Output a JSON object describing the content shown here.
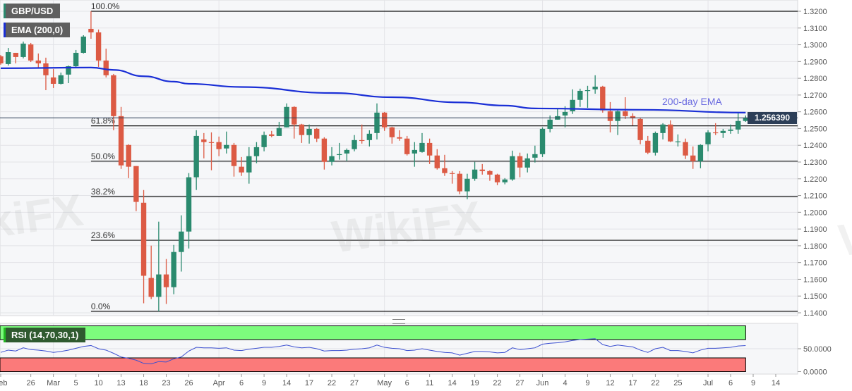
{
  "header": {
    "symbol": "GBP/USD",
    "indicator": "EMA (200,0)",
    "rsi_label": "RSI (14,70,30,1)",
    "watermark": "WikiFX"
  },
  "colors": {
    "up": "#2a8a6e",
    "down": "#dc5a44",
    "ema": "#1a2fd6",
    "price_label_bg": "#2c3e57",
    "rsi_line": "#3b4fd0",
    "overbought": "#7dfc7d",
    "oversold": "#fb7a7a",
    "plot_bg": "#f6f7f9",
    "grid": "#e3e4e8"
  },
  "chart_data": {
    "type": "candlestick",
    "title": "",
    "ylim": [
      1.14,
      1.32
    ],
    "y_ticks": [
      "1.3200",
      "1.3100",
      "1.3000",
      "1.2900",
      "1.2800",
      "1.2700",
      "1.2600",
      "1.2500",
      "1.2400",
      "1.2300",
      "1.2200",
      "1.2100",
      "1.2000",
      "1.1900",
      "1.1800",
      "1.1700",
      "1.1600",
      "1.1500",
      "1.1400"
    ],
    "current_price": "1.256390",
    "x_ticks": [
      {
        "label": "Feb",
        "date": "02-20"
      },
      {
        "label": "26",
        "date": "02-26"
      },
      {
        "label": "Mar",
        "date": "03-02"
      },
      {
        "label": "5",
        "date": "03-05"
      },
      {
        "label": "10",
        "date": "03-10"
      },
      {
        "label": "13",
        "date": "03-13"
      },
      {
        "label": "18",
        "date": "03-18"
      },
      {
        "label": "23",
        "date": "03-23"
      },
      {
        "label": "26",
        "date": "03-26"
      },
      {
        "label": "Apr",
        "date": "04-01"
      },
      {
        "label": "6",
        "date": "04-06"
      },
      {
        "label": "9",
        "date": "04-09"
      },
      {
        "label": "14",
        "date": "04-14"
      },
      {
        "label": "17",
        "date": "04-17"
      },
      {
        "label": "22",
        "date": "04-22"
      },
      {
        "label": "27",
        "date": "04-27"
      },
      {
        "label": "May",
        "date": "05-01"
      },
      {
        "label": "6",
        "date": "05-06"
      },
      {
        "label": "11",
        "date": "05-11"
      },
      {
        "label": "14",
        "date": "05-14"
      },
      {
        "label": "19",
        "date": "05-19"
      },
      {
        "label": "22",
        "date": "05-22"
      },
      {
        "label": "27",
        "date": "05-27"
      },
      {
        "label": "Jun",
        "date": "06-01"
      },
      {
        "label": "4",
        "date": "06-04"
      },
      {
        "label": "9",
        "date": "06-09"
      },
      {
        "label": "12",
        "date": "06-12"
      },
      {
        "label": "17",
        "date": "06-17"
      },
      {
        "label": "22",
        "date": "06-22"
      },
      {
        "label": "25",
        "date": "06-25"
      },
      {
        "label": "Jul",
        "date": "07-01"
      },
      {
        "label": "6",
        "date": "07-06"
      },
      {
        "label": "9",
        "date": "07-09"
      },
      {
        "label": "14",
        "date": "07-14"
      }
    ],
    "candles_fields": [
      "date",
      "open",
      "high",
      "low",
      "close"
    ],
    "candles": [
      [
        "02-20",
        1.2931,
        1.2939,
        1.2881,
        1.2889
      ],
      [
        "02-21",
        1.2885,
        1.2981,
        1.2876,
        1.2956
      ],
      [
        "02-24",
        1.2952,
        1.2952,
        1.2889,
        1.2927
      ],
      [
        "02-25",
        1.2927,
        1.3019,
        1.2919,
        1.3007
      ],
      [
        "02-26",
        1.3002,
        1.3011,
        1.2897,
        1.2906
      ],
      [
        "02-27",
        1.2906,
        1.2948,
        1.286,
        1.2889
      ],
      [
        "02-28",
        1.2889,
        1.2923,
        1.2729,
        1.2818
      ],
      [
        "03-02",
        1.2805,
        1.2855,
        1.2742,
        1.2767
      ],
      [
        "03-03",
        1.2767,
        1.2834,
        1.2763,
        1.2818
      ],
      [
        "03-04",
        1.2822,
        1.2876,
        1.2771,
        1.2872
      ],
      [
        "03-05",
        1.2872,
        1.2969,
        1.2864,
        1.2952
      ],
      [
        "03-06",
        1.2952,
        1.3057,
        1.2948,
        1.3049
      ],
      [
        "03-09",
        1.3095,
        1.32,
        1.3036,
        1.3074
      ],
      [
        "03-10",
        1.3074,
        1.3091,
        1.2868,
        1.2906
      ],
      [
        "03-11",
        1.2906,
        1.2977,
        1.2805,
        1.2818
      ],
      [
        "03-12",
        1.2818,
        1.2826,
        1.249,
        1.2574
      ],
      [
        "03-13",
        1.2574,
        1.2629,
        1.2259,
        1.228
      ],
      [
        "03-16",
        1.2402,
        1.2406,
        1.2204,
        1.2272
      ],
      [
        "03-17",
        1.2276,
        1.2276,
        1.2007,
        1.2062
      ],
      [
        "03-18",
        1.2057,
        1.2133,
        1.1457,
        1.1621
      ],
      [
        "03-19",
        1.1608,
        1.1801,
        1.1482,
        1.1495
      ],
      [
        "03-20",
        1.1495,
        1.1944,
        1.1409,
        1.1629
      ],
      [
        "03-23",
        1.1629,
        1.1721,
        1.1453,
        1.1553
      ],
      [
        "03-24",
        1.1553,
        1.1805,
        1.1511,
        1.1763
      ],
      [
        "03-25",
        1.1763,
        1.1982,
        1.1646,
        1.1885
      ],
      [
        "03-26",
        1.1885,
        1.2234,
        1.1784,
        1.2209
      ],
      [
        "03-27",
        1.2209,
        1.249,
        1.2133,
        1.2456
      ],
      [
        "03-30",
        1.2435,
        1.2473,
        1.2322,
        1.2419
      ],
      [
        "03-31",
        1.2419,
        1.2477,
        1.2251,
        1.2414
      ],
      [
        "04-01",
        1.2419,
        1.2452,
        1.2335,
        1.2377
      ],
      [
        "04-02",
        1.2381,
        1.2482,
        1.2351,
        1.2402
      ],
      [
        "04-03",
        1.2402,
        1.2414,
        1.2213,
        1.2276
      ],
      [
        "04-06",
        1.2272,
        1.233,
        1.2217,
        1.2238
      ],
      [
        "04-07",
        1.2238,
        1.2389,
        1.2171,
        1.2335
      ],
      [
        "04-08",
        1.2335,
        1.2419,
        1.2293,
        1.2389
      ],
      [
        "04-09",
        1.2389,
        1.2482,
        1.2364,
        1.2461
      ],
      [
        "04-10",
        1.2465,
        1.2486,
        1.2448,
        1.2456
      ],
      [
        "04-13",
        1.2456,
        1.254,
        1.2456,
        1.2503
      ],
      [
        "04-14",
        1.2507,
        1.265,
        1.2507,
        1.2629
      ],
      [
        "04-15",
        1.2629,
        1.2633,
        1.244,
        1.2524
      ],
      [
        "04-16",
        1.2524,
        1.2528,
        1.2414,
        1.2461
      ],
      [
        "04-17",
        1.2461,
        1.2524,
        1.241,
        1.2498
      ],
      [
        "04-20",
        1.2498,
        1.2503,
        1.2419,
        1.244
      ],
      [
        "04-21",
        1.244,
        1.2448,
        1.2255,
        1.2301
      ],
      [
        "04-22",
        1.2301,
        1.2389,
        1.228,
        1.2335
      ],
      [
        "04-23",
        1.2343,
        1.2414,
        1.2314,
        1.2347
      ],
      [
        "04-24",
        1.2351,
        1.2381,
        1.2305,
        1.2372
      ],
      [
        "04-27",
        1.2377,
        1.2461,
        1.2364,
        1.2431
      ],
      [
        "04-28",
        1.2431,
        1.2524,
        1.241,
        1.2427
      ],
      [
        "04-29",
        1.2431,
        1.249,
        1.2393,
        1.2469
      ],
      [
        "04-30",
        1.2473,
        1.265,
        1.2435,
        1.2595
      ],
      [
        "05-01",
        1.2595,
        1.2599,
        1.2486,
        1.2507
      ],
      [
        "05-04",
        1.2507,
        1.2511,
        1.241,
        1.2448
      ],
      [
        "05-05",
        1.2448,
        1.249,
        1.2427,
        1.244
      ],
      [
        "05-06",
        1.244,
        1.2456,
        1.2339,
        1.2347
      ],
      [
        "05-07",
        1.2351,
        1.2419,
        1.2272,
        1.2372
      ],
      [
        "05-08",
        1.236,
        1.2473,
        1.2356,
        1.2414
      ],
      [
        "05-11",
        1.2414,
        1.244,
        1.2288,
        1.2339
      ],
      [
        "05-12",
        1.2339,
        1.2377,
        1.2255,
        1.2263
      ],
      [
        "05-13",
        1.2263,
        1.2343,
        1.2217,
        1.2234
      ],
      [
        "05-14",
        1.2234,
        1.2246,
        1.2171,
        1.223
      ],
      [
        "05-15",
        1.223,
        1.2246,
        1.2108,
        1.2125
      ],
      [
        "05-18",
        1.2125,
        1.223,
        1.2078,
        1.22
      ],
      [
        "05-19",
        1.22,
        1.2301,
        1.2188,
        1.2255
      ],
      [
        "05-20",
        1.2255,
        1.2288,
        1.2225,
        1.2246
      ],
      [
        "05-21",
        1.2246,
        1.2251,
        1.2188,
        1.2225
      ],
      [
        "05-22",
        1.2225,
        1.223,
        1.2162,
        1.2179
      ],
      [
        "05-25",
        1.2179,
        1.2204,
        1.2167,
        1.2196
      ],
      [
        "05-26",
        1.2196,
        1.2368,
        1.2188,
        1.2335
      ],
      [
        "05-27",
        1.2335,
        1.2356,
        1.2209,
        1.2267
      ],
      [
        "05-28",
        1.2267,
        1.2351,
        1.2238,
        1.2322
      ],
      [
        "05-29",
        1.2326,
        1.2398,
        1.2297,
        1.2347
      ],
      [
        "06-01",
        1.2347,
        1.2507,
        1.233,
        1.2498
      ],
      [
        "06-02",
        1.2498,
        1.2578,
        1.2477,
        1.2553
      ],
      [
        "06-03",
        1.2553,
        1.2616,
        1.2553,
        1.2574
      ],
      [
        "06-04",
        1.2578,
        1.2633,
        1.2507,
        1.2599
      ],
      [
        "06-05",
        1.2603,
        1.2734,
        1.2587,
        1.2671
      ],
      [
        "06-08",
        1.2671,
        1.2738,
        1.2629,
        1.2725
      ],
      [
        "06-09",
        1.2729,
        1.2755,
        1.2624,
        1.2729
      ],
      [
        "06-10",
        1.2734,
        1.2818,
        1.2708,
        1.275
      ],
      [
        "06-11",
        1.275,
        1.2755,
        1.2595,
        1.2608
      ],
      [
        "06-12",
        1.2603,
        1.2658,
        1.2477,
        1.2545
      ],
      [
        "06-15",
        1.2545,
        1.2608,
        1.2461,
        1.2603
      ],
      [
        "06-16",
        1.2603,
        1.2687,
        1.2557,
        1.2574
      ],
      [
        "06-17",
        1.2574,
        1.2591,
        1.2519,
        1.2561
      ],
      [
        "06-18",
        1.2557,
        1.2565,
        1.2406,
        1.2431
      ],
      [
        "06-19",
        1.2427,
        1.2456,
        1.2347,
        1.2356
      ],
      [
        "06-22",
        1.2356,
        1.2482,
        1.2339,
        1.2473
      ],
      [
        "06-23",
        1.2473,
        1.2532,
        1.2435,
        1.2524
      ],
      [
        "06-24",
        1.2524,
        1.2549,
        1.2419,
        1.2423
      ],
      [
        "06-25",
        1.2423,
        1.2465,
        1.2393,
        1.2423
      ],
      [
        "06-26",
        1.2419,
        1.244,
        1.2318,
        1.2339
      ],
      [
        "06-29",
        1.2339,
        1.2393,
        1.2259,
        1.2305
      ],
      [
        "06-30",
        1.2305,
        1.2406,
        1.2263,
        1.2402
      ],
      [
        "07-01",
        1.2406,
        1.249,
        1.2364,
        1.2477
      ],
      [
        "07-02",
        1.2477,
        1.2532,
        1.2461,
        1.2473
      ],
      [
        "07-03",
        1.2473,
        1.2498,
        1.2444,
        1.2486
      ],
      [
        "07-06",
        1.2486,
        1.2524,
        1.2469,
        1.2494
      ],
      [
        "07-07",
        1.2494,
        1.2591,
        1.2469,
        1.2545
      ],
      [
        "07-08",
        1.2545,
        1.2578,
        1.254,
        1.2564
      ]
    ],
    "ema": {
      "name": "200-day EMA",
      "points": [
        [
          "02-20",
          1.286
        ],
        [
          "03-09",
          1.2864
        ],
        [
          "03-12",
          1.285
        ],
        [
          "03-18",
          1.2812
        ],
        [
          "03-24",
          1.278
        ],
        [
          "03-26",
          1.2767
        ],
        [
          "04-06",
          1.2748
        ],
        [
          "04-22",
          1.2712
        ],
        [
          "05-04",
          1.2687
        ],
        [
          "05-15",
          1.2656
        ],
        [
          "05-25",
          1.2637
        ],
        [
          "05-29",
          1.262
        ],
        [
          "06-18",
          1.2612
        ],
        [
          "07-08",
          1.2595
        ]
      ]
    },
    "fibonacci": [
      {
        "label": "100.0%",
        "value": 1.32
      },
      {
        "label": "61.8%",
        "value": 1.2516
      },
      {
        "label": "50.0%",
        "value": 1.2305
      },
      {
        "label": "38.2%",
        "value": 1.2094
      },
      {
        "label": "23.6%",
        "value": 1.1833
      },
      {
        "label": "0.0%",
        "value": 1.1409
      }
    ],
    "fib_start_date": "03-09",
    "rsi": {
      "ylim": [
        0,
        100
      ],
      "overbought": 70,
      "oversold": 30,
      "y_ticks": [
        "50.0000",
        "0.0000"
      ],
      "values": [
        42,
        47,
        45,
        52,
        48,
        47,
        45,
        42,
        44,
        47,
        51,
        55,
        57,
        50,
        47,
        40,
        32,
        29,
        25,
        18,
        17,
        22,
        21,
        28,
        32,
        45,
        53,
        52,
        52,
        51,
        52,
        47,
        46,
        49,
        51,
        53,
        53,
        55,
        58,
        54,
        52,
        53,
        50,
        45,
        46,
        46,
        47,
        49,
        50,
        52,
        58,
        53,
        51,
        50,
        46,
        47,
        50,
        47,
        44,
        42,
        41,
        36,
        40,
        44,
        44,
        43,
        41,
        42,
        52,
        48,
        50,
        52,
        60,
        62,
        63,
        65,
        68,
        70,
        71,
        72,
        59,
        55,
        58,
        56,
        54,
        47,
        42,
        50,
        53,
        46,
        46,
        44,
        41,
        47,
        51,
        51,
        52,
        53,
        56,
        57
      ]
    }
  }
}
